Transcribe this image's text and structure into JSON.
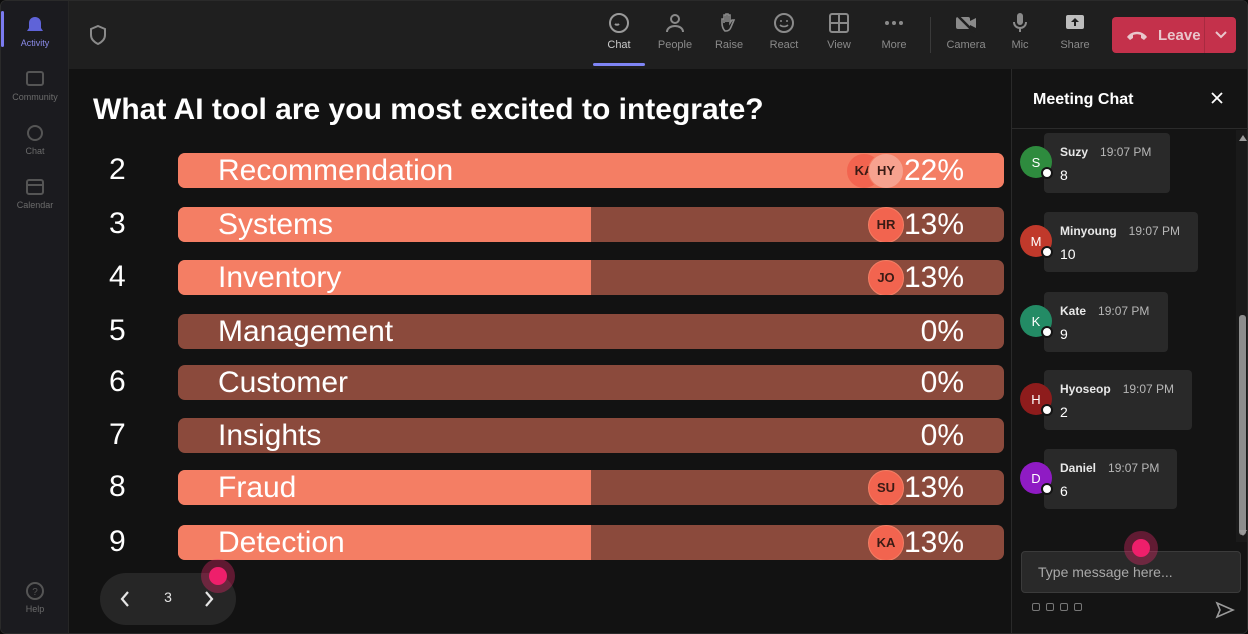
{
  "rail": {
    "items": [
      {
        "label": "Activity",
        "icon": "bell-icon"
      },
      {
        "label": "Community",
        "icon": "community-icon"
      },
      {
        "label": "Chat",
        "icon": "chat-icon"
      },
      {
        "label": "Calendar",
        "icon": "calendar-icon"
      }
    ],
    "help": "Help"
  },
  "toolbar": {
    "items": [
      {
        "label": "Chat",
        "icon": "chat-icon"
      },
      {
        "label": "People",
        "icon": "people-icon"
      },
      {
        "label": "Raise",
        "icon": "hand-icon"
      },
      {
        "label": "React",
        "icon": "smiley-icon"
      },
      {
        "label": "View",
        "icon": "grid-icon"
      },
      {
        "label": "More",
        "icon": "more-icon"
      },
      {
        "label": "Camera",
        "icon": "camera-off-icon"
      },
      {
        "label": "Mic",
        "icon": "mic-icon"
      },
      {
        "label": "Share",
        "icon": "share-icon"
      }
    ],
    "leave_label": "Leave",
    "accent": "#c4314b"
  },
  "poll": {
    "question": "What AI tool are you most excited to integrate?",
    "options": [
      {
        "number": "2",
        "label": "Recommendation",
        "percent": "22%",
        "fill": 1.0,
        "voters": [
          "HY",
          "KA"
        ]
      },
      {
        "number": "3",
        "label": "Systems",
        "percent": "13%",
        "fill": 0.5,
        "voters": [
          "HR"
        ]
      },
      {
        "number": "4",
        "label": "Inventory",
        "percent": "13%",
        "fill": 0.5,
        "voters": [
          "JO"
        ]
      },
      {
        "number": "5",
        "label": "Management",
        "percent": "0%",
        "fill": 0,
        "voters": []
      },
      {
        "number": "6",
        "label": "Customer",
        "percent": "0%",
        "fill": 0,
        "voters": []
      },
      {
        "number": "7",
        "label": "Insights",
        "percent": "0%",
        "fill": 0,
        "voters": []
      },
      {
        "number": "8",
        "label": "Fraud",
        "percent": "13%",
        "fill": 0.5,
        "voters": [
          "SU"
        ]
      },
      {
        "number": "9",
        "label": "Detection",
        "percent": "13%",
        "fill": 0.5,
        "voters": [
          "KA"
        ]
      }
    ],
    "bar_color": "#f47e64",
    "track_color": "#8b4a3c",
    "page": "3"
  },
  "chat": {
    "title": "Meeting Chat",
    "placeholder": "Type message here...",
    "messages": [
      {
        "initial": "S",
        "name": "Suzy",
        "time": "19:07 PM",
        "text": "8",
        "color": "#2e8b3e"
      },
      {
        "initial": "M",
        "name": "Minyoung",
        "time": "19:07 PM",
        "text": "10",
        "color": "#c0392b"
      },
      {
        "initial": "K",
        "name": "Kate",
        "time": "19:07 PM",
        "text": "9",
        "color": "#238b65"
      },
      {
        "initial": "H",
        "name": "Hyoseop",
        "time": "19:07 PM",
        "text": "2",
        "color": "#8e1c1c"
      },
      {
        "initial": "D",
        "name": "Daniel",
        "time": "19:07 PM",
        "text": "6",
        "color": "#8f1bc4"
      }
    ]
  }
}
